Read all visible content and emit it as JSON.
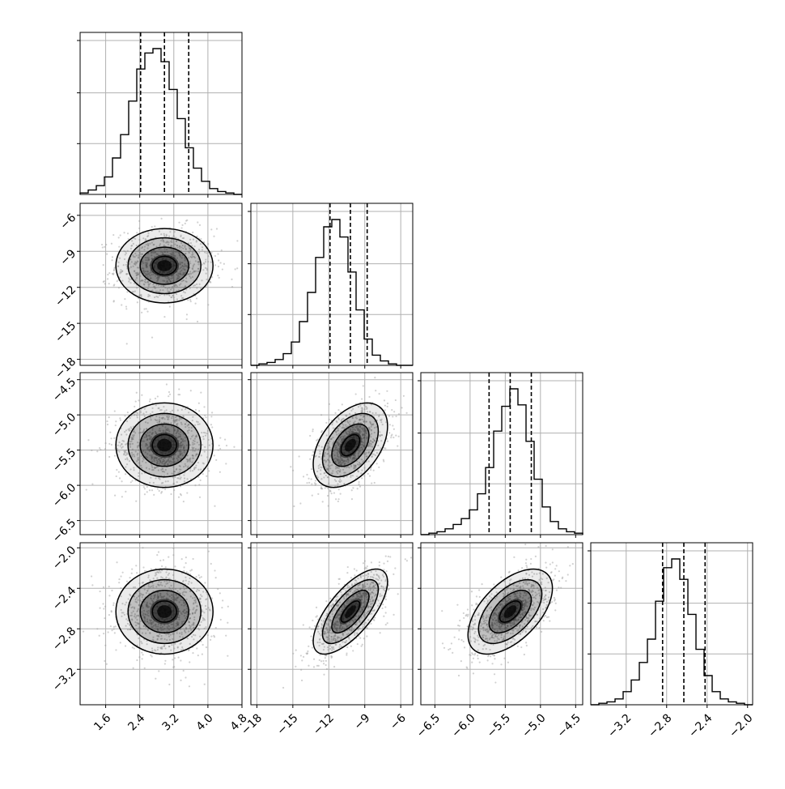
{
  "chart_data": {
    "type": "corner",
    "n_params": 4,
    "params": [
      {
        "range": [
          1.0,
          4.8
        ],
        "ticks": [
          "1.6",
          "2.4",
          "3.2",
          "4.0",
          "4.8"
        ],
        "tick_values": [
          1.6,
          2.4,
          3.2,
          4.0,
          4.8
        ],
        "quantiles": [
          2.42,
          2.98,
          3.55
        ],
        "center": 2.98,
        "sigma": 0.57
      },
      {
        "range": [
          -18.5,
          -5.0
        ],
        "ticks": [
          "−18",
          "−15",
          "−12",
          "−9",
          "−6"
        ],
        "tick_values": [
          -18,
          -15,
          -12,
          -9,
          -6
        ],
        "quantiles": [
          -11.9,
          -10.2,
          -8.8
        ],
        "center": -10.2,
        "sigma": 1.55
      },
      {
        "range": [
          -6.7,
          -4.4
        ],
        "ticks": [
          "−6.5",
          "−6.0",
          "−5.5",
          "−5.0",
          "−4.5"
        ],
        "tick_values": [
          -6.5,
          -6.0,
          -5.5,
          -5.0,
          -4.5
        ],
        "quantiles": [
          -5.73,
          -5.43,
          -5.13
        ],
        "center": -5.43,
        "sigma": 0.3
      },
      {
        "range": [
          -3.55,
          -1.95
        ],
        "ticks": [
          "−3.2",
          "−2.8",
          "−2.4",
          "−2.0"
        ],
        "tick_values": [
          -3.2,
          -2.8,
          -2.4,
          -2.0
        ],
        "quantiles": [
          -2.84,
          -2.63,
          -2.42
        ],
        "center": -2.63,
        "sigma": 0.21
      }
    ],
    "y_ticks": {
      "row1": [
        "−6",
        "−9",
        "−12",
        "−15",
        "−18"
      ],
      "row2": [
        "−4.5",
        "−5.0",
        "−5.5",
        "−6.0",
        "−6.5"
      ],
      "row3": [
        "−2.0",
        "−2.4",
        "−2.8",
        "−3.2"
      ]
    },
    "hist_bins": 20,
    "histograms": [
      [
        0.01,
        0.03,
        0.06,
        0.12,
        0.25,
        0.41,
        0.64,
        0.86,
        0.97,
        1.0,
        0.91,
        0.72,
        0.52,
        0.32,
        0.18,
        0.09,
        0.04,
        0.02,
        0.01,
        0.0
      ],
      [
        0.0,
        0.01,
        0.02,
        0.04,
        0.08,
        0.16,
        0.3,
        0.5,
        0.74,
        0.95,
        1.0,
        0.88,
        0.64,
        0.38,
        0.18,
        0.07,
        0.03,
        0.01,
        0.0,
        0.0
      ],
      [
        0.0,
        0.01,
        0.02,
        0.04,
        0.07,
        0.11,
        0.17,
        0.28,
        0.46,
        0.71,
        0.88,
        1.0,
        0.89,
        0.64,
        0.38,
        0.19,
        0.09,
        0.04,
        0.02,
        0.01
      ],
      [
        0.0,
        0.01,
        0.02,
        0.04,
        0.09,
        0.17,
        0.29,
        0.45,
        0.71,
        0.94,
        1.0,
        0.86,
        0.62,
        0.38,
        0.2,
        0.09,
        0.04,
        0.02,
        0.01,
        0.0
      ]
    ],
    "correlations": {
      "1-0": 0.0,
      "2-0": 0.0,
      "2-1": 0.45,
      "3-0": 0.0,
      "3-1": 0.7,
      "3-2": 0.55
    },
    "contour_levels_sigma": [
      0.5,
      1.0,
      1.5,
      2.0
    ],
    "grid": true,
    "colors": {
      "line": "#000000",
      "density": "#000000",
      "grid": "#b0b0b0",
      "points": "#9a9a9a"
    }
  }
}
